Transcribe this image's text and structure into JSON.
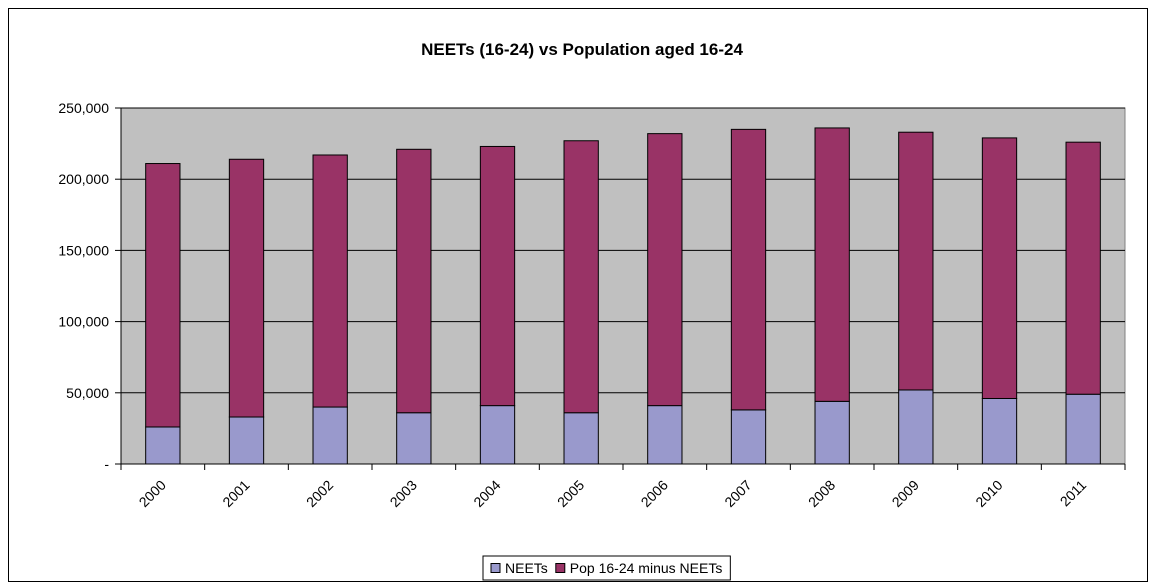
{
  "chart_data": {
    "type": "bar",
    "stacked": true,
    "title": "NEETs (16-24) vs Population aged 16-24",
    "xlabel": "",
    "ylabel": "",
    "categories": [
      "2000",
      "2001",
      "2002",
      "2003",
      "2004",
      "2005",
      "2006",
      "2007",
      "2008",
      "2009",
      "2010",
      "2011"
    ],
    "series": [
      {
        "name": "NEETs",
        "color": "#9999cc",
        "values": [
          26000,
          33000,
          40000,
          36000,
          41000,
          36000,
          41000,
          38000,
          44000,
          52000,
          46000,
          49000
        ]
      },
      {
        "name": "Pop 16-24 minus NEETs",
        "color": "#993366",
        "values": [
          185000,
          181000,
          177000,
          185000,
          182000,
          191000,
          191000,
          197000,
          192000,
          181000,
          183000,
          177000
        ]
      }
    ],
    "ylim": [
      0,
      250000
    ],
    "yticks": [
      0,
      50000,
      100000,
      150000,
      200000,
      250000
    ],
    "ytick_labels": [
      "-",
      "50,000",
      "100,000",
      "150,000",
      "200,000",
      "250,000"
    ],
    "grid": true,
    "plot_background": "#c0c0c0",
    "legend_position": "bottom"
  }
}
